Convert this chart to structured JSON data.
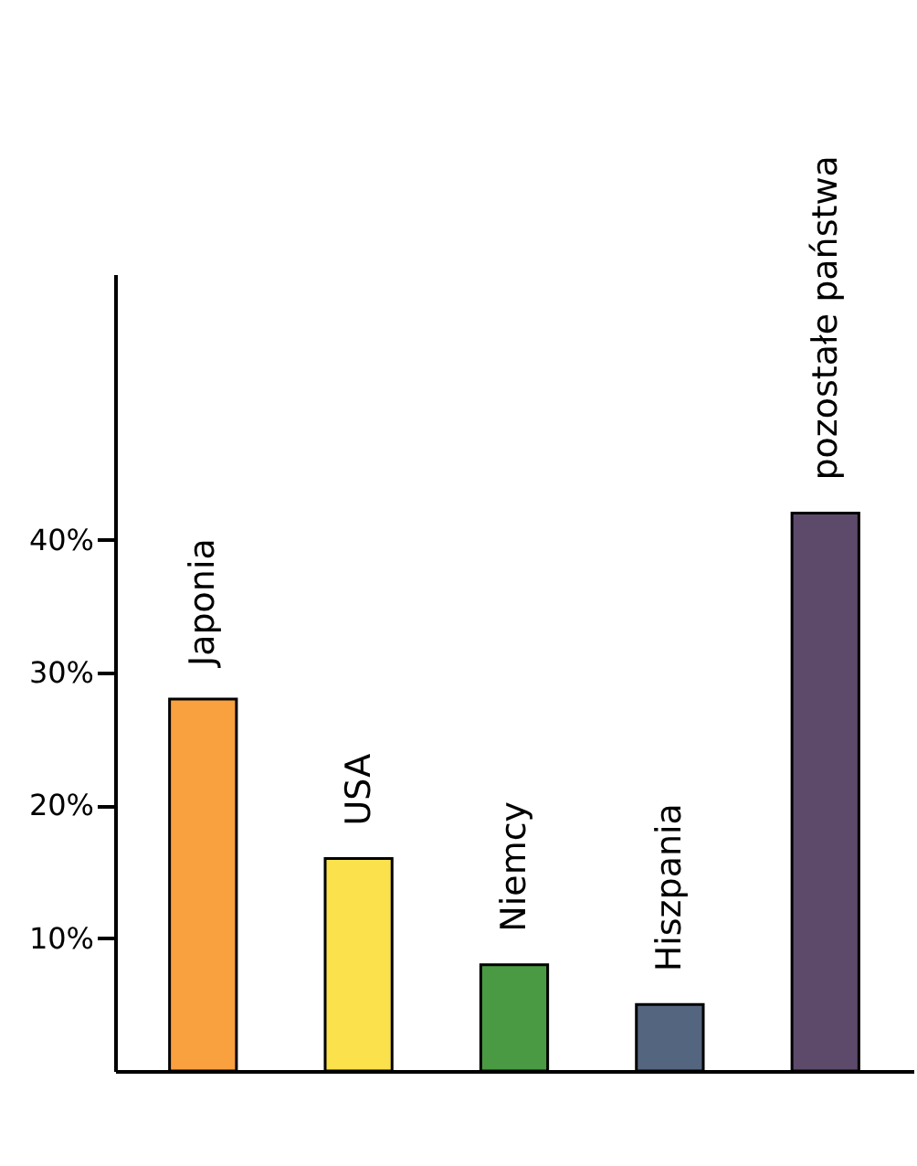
{
  "chart_data": {
    "type": "bar",
    "categories": [
      "Japonia",
      "USA",
      "Niemcy",
      "Hiszpania",
      "pozostałe państwa"
    ],
    "values": [
      28,
      16,
      8,
      5,
      42
    ],
    "colors": [
      "#f9a03f",
      "#fbe14b",
      "#4a9a44",
      "#54657f",
      "#5d4a6a"
    ],
    "ylim": [
      0,
      60
    ],
    "yticks": [
      {
        "value": 10,
        "label": "10%"
      },
      {
        "value": 20,
        "label": "20%"
      },
      {
        "value": 30,
        "label": "30%"
      },
      {
        "value": 40,
        "label": "40%"
      }
    ],
    "tick_labels": "y"
  }
}
